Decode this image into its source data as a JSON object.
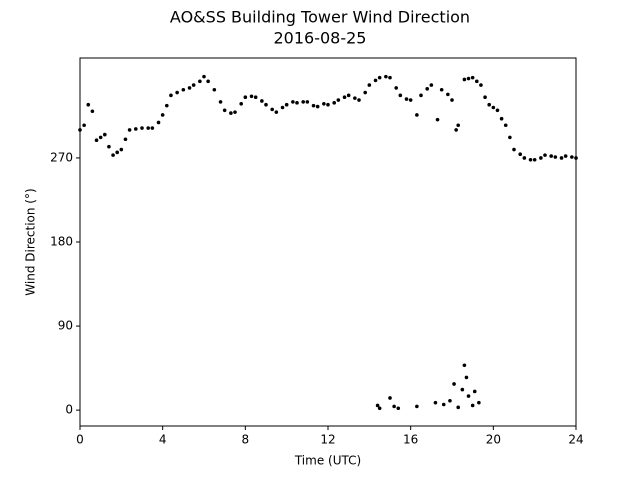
{
  "chart_data": {
    "type": "scatter",
    "title": "AO&SS Building Tower Wind Direction",
    "subtitle": "2016-08-25",
    "x_label": "Time (UTC)",
    "y_label": "Wind Direction (°)",
    "color": "#000000",
    "xlim": [
      0,
      24
    ],
    "ylim": [
      -17,
      377
    ],
    "xticks": [
      0,
      4,
      8,
      12,
      16,
      20,
      24
    ],
    "yticks": [
      0,
      90,
      180,
      270
    ],
    "x": [
      0,
      0.2,
      0.4,
      0.6,
      0.8,
      1.0,
      1.2,
      1.4,
      1.6,
      1.8,
      2.0,
      2.2,
      2.4,
      2.7,
      3.0,
      3.3,
      3.5,
      3.8,
      4.0,
      4.2,
      4.4,
      4.7,
      5.0,
      5.3,
      5.5,
      5.8,
      6.0,
      6.2,
      6.5,
      6.8,
      7.0,
      7.3,
      7.5,
      7.8,
      8.0,
      8.3,
      8.5,
      8.8,
      9.0,
      9.3,
      9.5,
      9.8,
      10.0,
      10.3,
      10.5,
      10.8,
      11.0,
      11.3,
      11.5,
      11.8,
      12.0,
      12.3,
      12.5,
      12.8,
      13.0,
      13.3,
      13.5,
      13.8,
      14.0,
      14.3,
      14.5,
      14.8,
      15.0,
      15.3,
      15.5,
      15.8,
      16.0,
      16.3,
      16.5,
      16.8,
      17.0,
      17.3,
      17.5,
      17.8,
      18.0,
      18.2,
      18.3,
      18.6,
      18.8,
      19.0,
      19.2,
      19.4,
      19.6,
      19.8,
      20.0,
      20.2,
      20.4,
      20.6,
      20.8,
      21.0,
      21.3,
      21.5,
      21.8,
      22.0,
      22.3,
      22.5,
      22.8,
      23.0,
      23.3,
      23.5,
      23.8,
      24.0,
      14.4,
      14.5,
      15.0,
      15.2,
      15.4,
      16.3,
      17.2,
      17.6,
      17.9,
      18.1,
      18.3,
      18.5,
      18.6,
      18.7,
      18.8,
      19.0,
      19.1,
      19.3
    ],
    "values": [
      300,
      305,
      327,
      320,
      289,
      292,
      295,
      282,
      273,
      276,
      279,
      290,
      300,
      301,
      302,
      302,
      302,
      308,
      316,
      326,
      337,
      340,
      343,
      345,
      348,
      352,
      357,
      352,
      343,
      330,
      321,
      318,
      319,
      328,
      335,
      336,
      335,
      331,
      327,
      322,
      319,
      324,
      327,
      330,
      329,
      330,
      330,
      326,
      325,
      328,
      327,
      329,
      332,
      335,
      337,
      334,
      332,
      340,
      348,
      353,
      356,
      357,
      356,
      345,
      337,
      333,
      332,
      316,
      337,
      344,
      348,
      311,
      343,
      338,
      332,
      300,
      305,
      354,
      355,
      356,
      352,
      348,
      335,
      327,
      324,
      321,
      312,
      305,
      292,
      279,
      274,
      270,
      268,
      268,
      270,
      273,
      272,
      271,
      270,
      272,
      271,
      270,
      5,
      2,
      13,
      4,
      2,
      4,
      8,
      6,
      10,
      28,
      3,
      22,
      48,
      35,
      15,
      5,
      20,
      8
    ]
  }
}
